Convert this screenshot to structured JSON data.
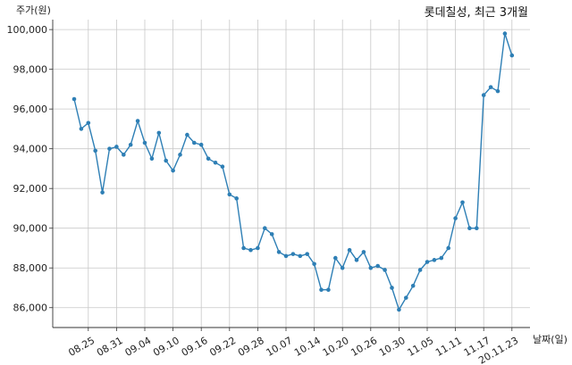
{
  "chart_data": {
    "type": "line",
    "title": "롯데칠성, 최근 3개월",
    "ylabel": "주가(원)",
    "xlabel": "날짜(일)",
    "ylim": [
      85000,
      100500
    ],
    "yticks": [
      86000,
      88000,
      90000,
      92000,
      94000,
      96000,
      98000,
      100000
    ],
    "ytick_labels": [
      "86,000",
      "88,000",
      "90,000",
      "92,000",
      "94,000",
      "96,000",
      "98,000",
      "100,000"
    ],
    "xtick_labels": [
      "08.25",
      "08.31",
      "09.04",
      "09.10",
      "09.16",
      "09.22",
      "09.28",
      "10.07",
      "10.14",
      "10.20",
      "10.26",
      "10.30",
      "11.05",
      "11.11",
      "11.17",
      "20.11.23"
    ],
    "xtick_index": [
      2,
      6,
      10,
      14,
      18,
      22,
      26,
      30,
      34,
      38,
      42,
      46,
      50,
      54,
      58,
      62
    ],
    "grid": true,
    "color": "#2e7fb5",
    "series": [
      {
        "values": [
          96500,
          95000,
          95300,
          93900,
          91800,
          94000,
          94100,
          93700,
          94200,
          95400,
          94300,
          93500,
          94800,
          93400,
          92900,
          93700,
          94700,
          94300,
          94200,
          93500,
          93300,
          93100,
          91700,
          91500,
          89000,
          88900,
          89000,
          90000,
          89700,
          88800,
          88600,
          88700,
          88600,
          88700,
          88200,
          86900,
          86900,
          88500,
          88000,
          88900,
          88400,
          88800,
          88000,
          88100,
          87900,
          87000,
          85900,
          86500,
          87100,
          87900,
          88300,
          88400,
          88500,
          89000,
          90500,
          91300,
          90000,
          90000,
          96700,
          97100,
          96900,
          99800,
          98700
        ]
      }
    ]
  }
}
